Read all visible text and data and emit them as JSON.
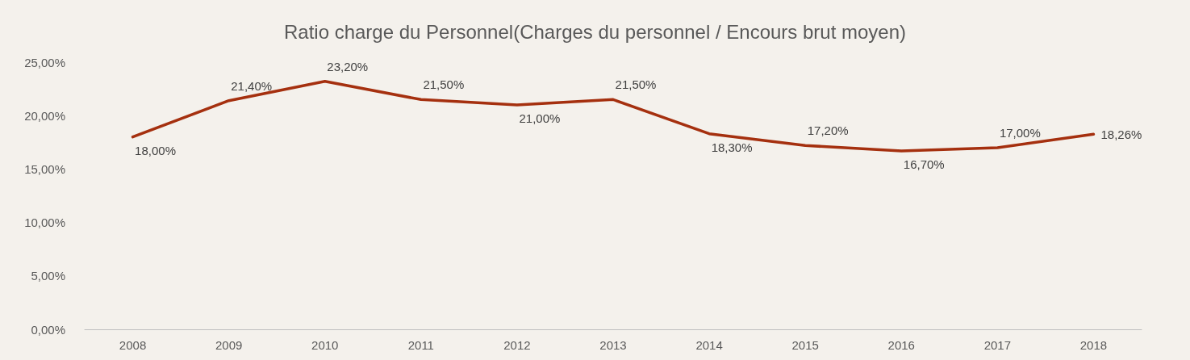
{
  "chart_data": {
    "type": "line",
    "title": "Ratio charge du Personnel(Charges du personnel / Encours brut moyen)",
    "categories": [
      "2008",
      "2009",
      "2010",
      "2011",
      "2012",
      "2013",
      "2014",
      "2015",
      "2016",
      "2017",
      "2018"
    ],
    "series": [
      {
        "color": "#a5300f",
        "values": [
          18,
          21.4,
          23.2,
          21.5,
          21,
          21.5,
          18.3,
          17.2,
          16.7,
          17,
          18.26
        ],
        "value_labels": [
          "18,00%",
          "21,40%",
          "23,20%",
          "21,50%",
          "21,00%",
          "21,50%",
          "18,30%",
          "17,20%",
          "16,70%",
          "17,00%",
          "18,26%"
        ]
      }
    ],
    "ylim": [
      0,
      25
    ],
    "yticks": [
      {
        "value": 0,
        "label": "0,00%"
      },
      {
        "value": 5,
        "label": "5,00%"
      },
      {
        "value": 10,
        "label": "10,00%"
      },
      {
        "value": 15,
        "label": "15,00%"
      },
      {
        "value": 20,
        "label": "20,00%"
      },
      {
        "value": 25,
        "label": "25,00%"
      }
    ],
    "grid": false,
    "marker": "none",
    "line_style": "solid"
  }
}
